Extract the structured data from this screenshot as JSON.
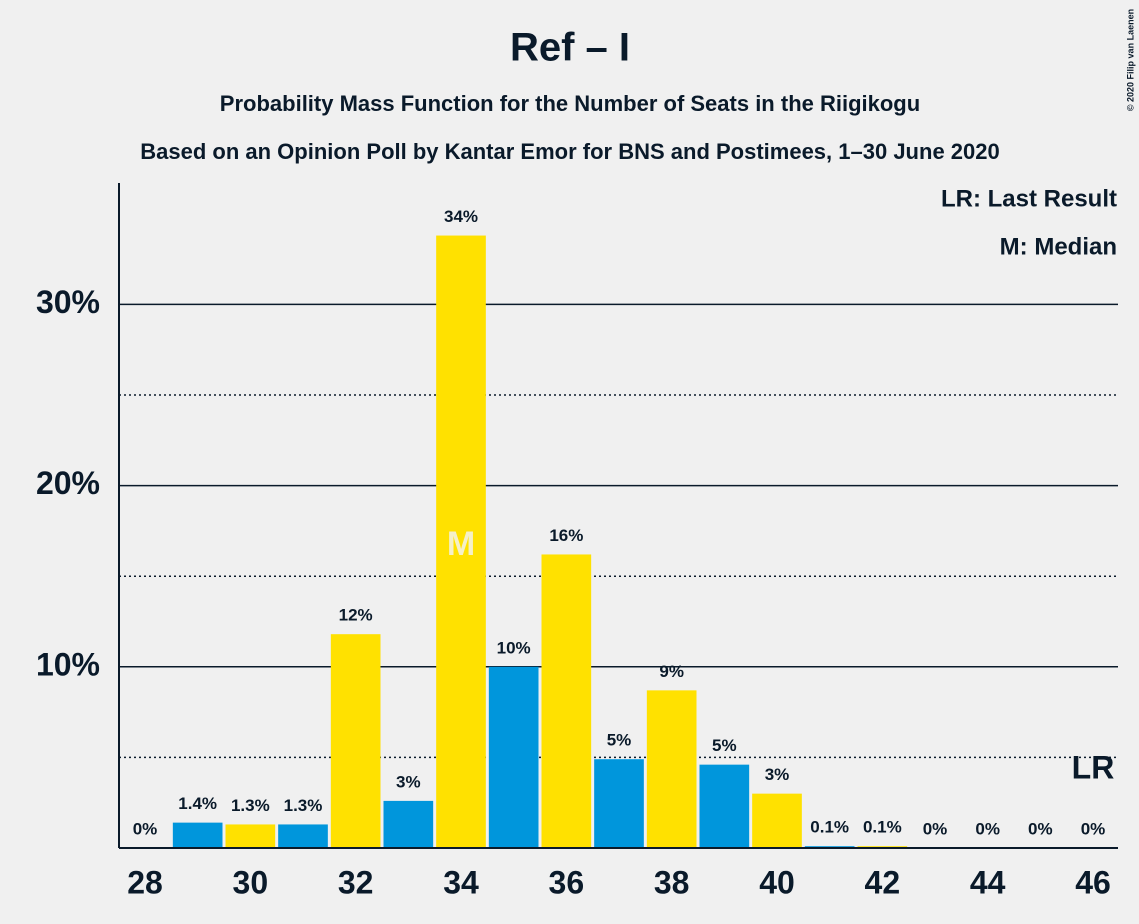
{
  "chart_data": {
    "type": "bar",
    "title": "Ref – I",
    "subtitle": "Probability Mass Function for the Number of Seats in the Riigikogu",
    "subtitle2": "Based on an Opinion Poll by Kantar Emor for BNS and Postimees, 1–30 June 2020",
    "copyright": "© 2020 Filip van Laenen",
    "legend": [
      "LR: Last Result",
      "M: Median"
    ],
    "x": [
      28,
      29,
      30,
      31,
      32,
      33,
      34,
      35,
      36,
      37,
      38,
      39,
      40,
      41,
      42,
      43,
      44,
      45,
      46
    ],
    "values": [
      0,
      1.4,
      1.3,
      1.3,
      11.8,
      2.6,
      33.8,
      10,
      16.2,
      4.9,
      8.7,
      4.6,
      3.0,
      0.1,
      0.1,
      0,
      0,
      0,
      0
    ],
    "value_labels": [
      "0%",
      "1.4%",
      "1.3%",
      "1.3%",
      "12%",
      "3%",
      "34%",
      "10%",
      "16%",
      "5%",
      "9%",
      "5%",
      "3%",
      "0.1%",
      "0.1%",
      "0%",
      "0%",
      "0%",
      "0%"
    ],
    "colors": [
      "#FFE100",
      "#0096DC",
      "#FFE100",
      "#0096DC",
      "#FFE100",
      "#0096DC",
      "#FFE100",
      "#0096DC",
      "#FFE100",
      "#0096DC",
      "#FFE100",
      "#0096DC",
      "#FFE100",
      "#0096DC",
      "#FFE100",
      "#0096DC",
      "#FFE100",
      "#0096DC",
      "#FFE100"
    ],
    "xlim": [
      27.5,
      46.5
    ],
    "xticks": [
      28,
      30,
      32,
      34,
      36,
      38,
      40,
      42,
      44,
      46
    ],
    "ylim": [
      0,
      36.7
    ],
    "yticks": [
      {
        "value": 10,
        "label": "10%"
      },
      {
        "value": 20,
        "label": "20%"
      },
      {
        "value": 30,
        "label": "30%"
      }
    ],
    "minor_yticks": [
      5,
      15,
      25
    ],
    "median": {
      "x": 34,
      "label": "M"
    },
    "last_result": {
      "x": 46,
      "label": "LR"
    }
  }
}
